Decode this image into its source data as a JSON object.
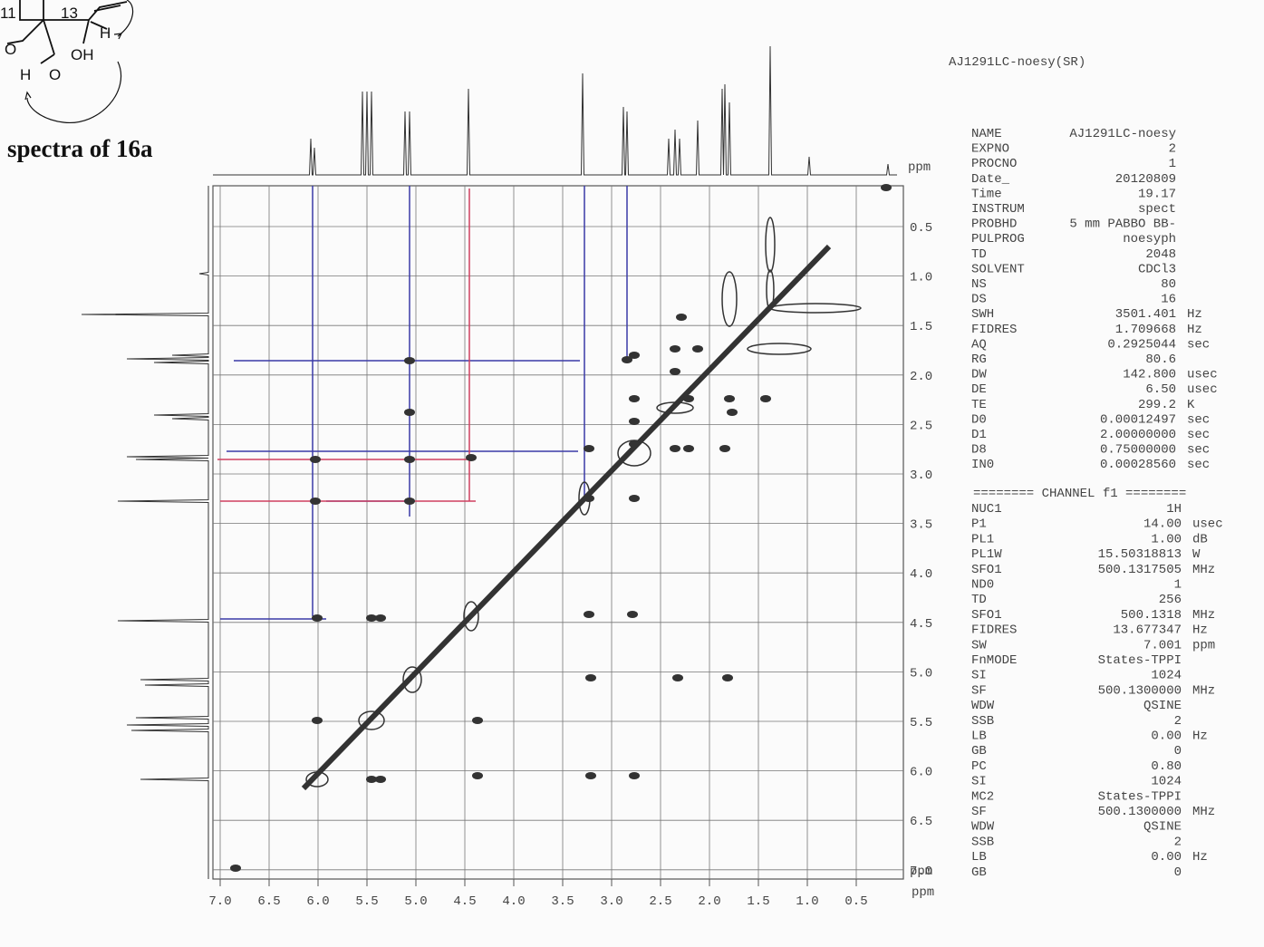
{
  "figure_caption": "spectra of 16a",
  "structure_labels": [
    "11",
    "13",
    "H",
    "OH",
    "O",
    "H",
    "O"
  ],
  "spectrum": {
    "title": "AJ1291LC-noesy(SR)",
    "x_axis": {
      "unit": "ppm",
      "ticks": [
        "7.0",
        "6.5",
        "6.0",
        "5.5",
        "5.0",
        "4.5",
        "4.0",
        "3.5",
        "3.0",
        "2.5",
        "2.0",
        "1.5",
        "1.0",
        "0.5"
      ]
    },
    "y_axis": {
      "unit": "ppm",
      "ticks": [
        "0.5",
        "1.0",
        "1.5",
        "2.0",
        "2.5",
        "3.0",
        "3.5",
        "4.0",
        "4.5",
        "5.0",
        "5.5",
        "6.0",
        "6.5",
        "7.0"
      ]
    },
    "top_axis_unit": "ppm"
  },
  "parameters": [
    [
      "NAME",
      "AJ1291LC-noesy"
    ],
    [
      "EXPNO",
      "2"
    ],
    [
      "PROCNO",
      "1"
    ],
    [
      "Date_",
      "20120809"
    ],
    [
      "Time",
      "19.17"
    ],
    [
      "INSTRUM",
      "spect"
    ],
    [
      "PROBHD",
      "5 mm PABBO BB-"
    ],
    [
      "PULPROG",
      "noesyph"
    ],
    [
      "TD",
      "2048"
    ],
    [
      "SOLVENT",
      "CDCl3"
    ],
    [
      "NS",
      "80"
    ],
    [
      "DS",
      "16"
    ],
    [
      "SWH",
      "3501.401",
      "Hz"
    ],
    [
      "FIDRES",
      "1.709668",
      "Hz"
    ],
    [
      "AQ",
      "0.2925044",
      "sec"
    ],
    [
      "RG",
      "80.6"
    ],
    [
      "DW",
      "142.800",
      "usec"
    ],
    [
      "DE",
      "6.50",
      "usec"
    ],
    [
      "TE",
      "299.2",
      "K"
    ],
    [
      "D0",
      "0.00012497",
      "sec"
    ],
    [
      "D1",
      "2.00000000",
      "sec"
    ],
    [
      "D8",
      "0.75000000",
      "sec"
    ],
    [
      "IN0",
      "0.00028560",
      "sec"
    ]
  ],
  "channel_header": "======== CHANNEL f1 ========",
  "channel_parameters": [
    [
      "NUC1",
      "1H"
    ],
    [
      "P1",
      "14.00",
      "usec"
    ],
    [
      "PL1",
      "1.00",
      "dB"
    ],
    [
      "PL1W",
      "15.50318813",
      "W"
    ],
    [
      "SFO1",
      "500.1317505",
      "MHz"
    ],
    [
      "ND0",
      "1"
    ],
    [
      "TD",
      "256"
    ],
    [
      "SFO1",
      "500.1318",
      "MHz"
    ],
    [
      "FIDRES",
      "13.677347",
      "Hz"
    ],
    [
      "SW",
      "7.001",
      "ppm"
    ],
    [
      "FnMODE",
      "States-TPPI"
    ],
    [
      "SI",
      "1024"
    ],
    [
      "SF",
      "500.1300000",
      "MHz"
    ],
    [
      "WDW",
      "QSINE"
    ],
    [
      "SSB",
      "2"
    ],
    [
      "LB",
      "0.00",
      "Hz"
    ],
    [
      "GB",
      "0"
    ],
    [
      "PC",
      "0.80"
    ],
    [
      "SI",
      "1024"
    ],
    [
      "MC2",
      "States-TPPI"
    ],
    [
      "SF",
      "500.1300000",
      "MHz"
    ],
    [
      "WDW",
      "QSINE"
    ],
    [
      "SSB",
      "2"
    ],
    [
      "LB",
      "0.00",
      "Hz"
    ],
    [
      "GB",
      "0"
    ]
  ]
}
